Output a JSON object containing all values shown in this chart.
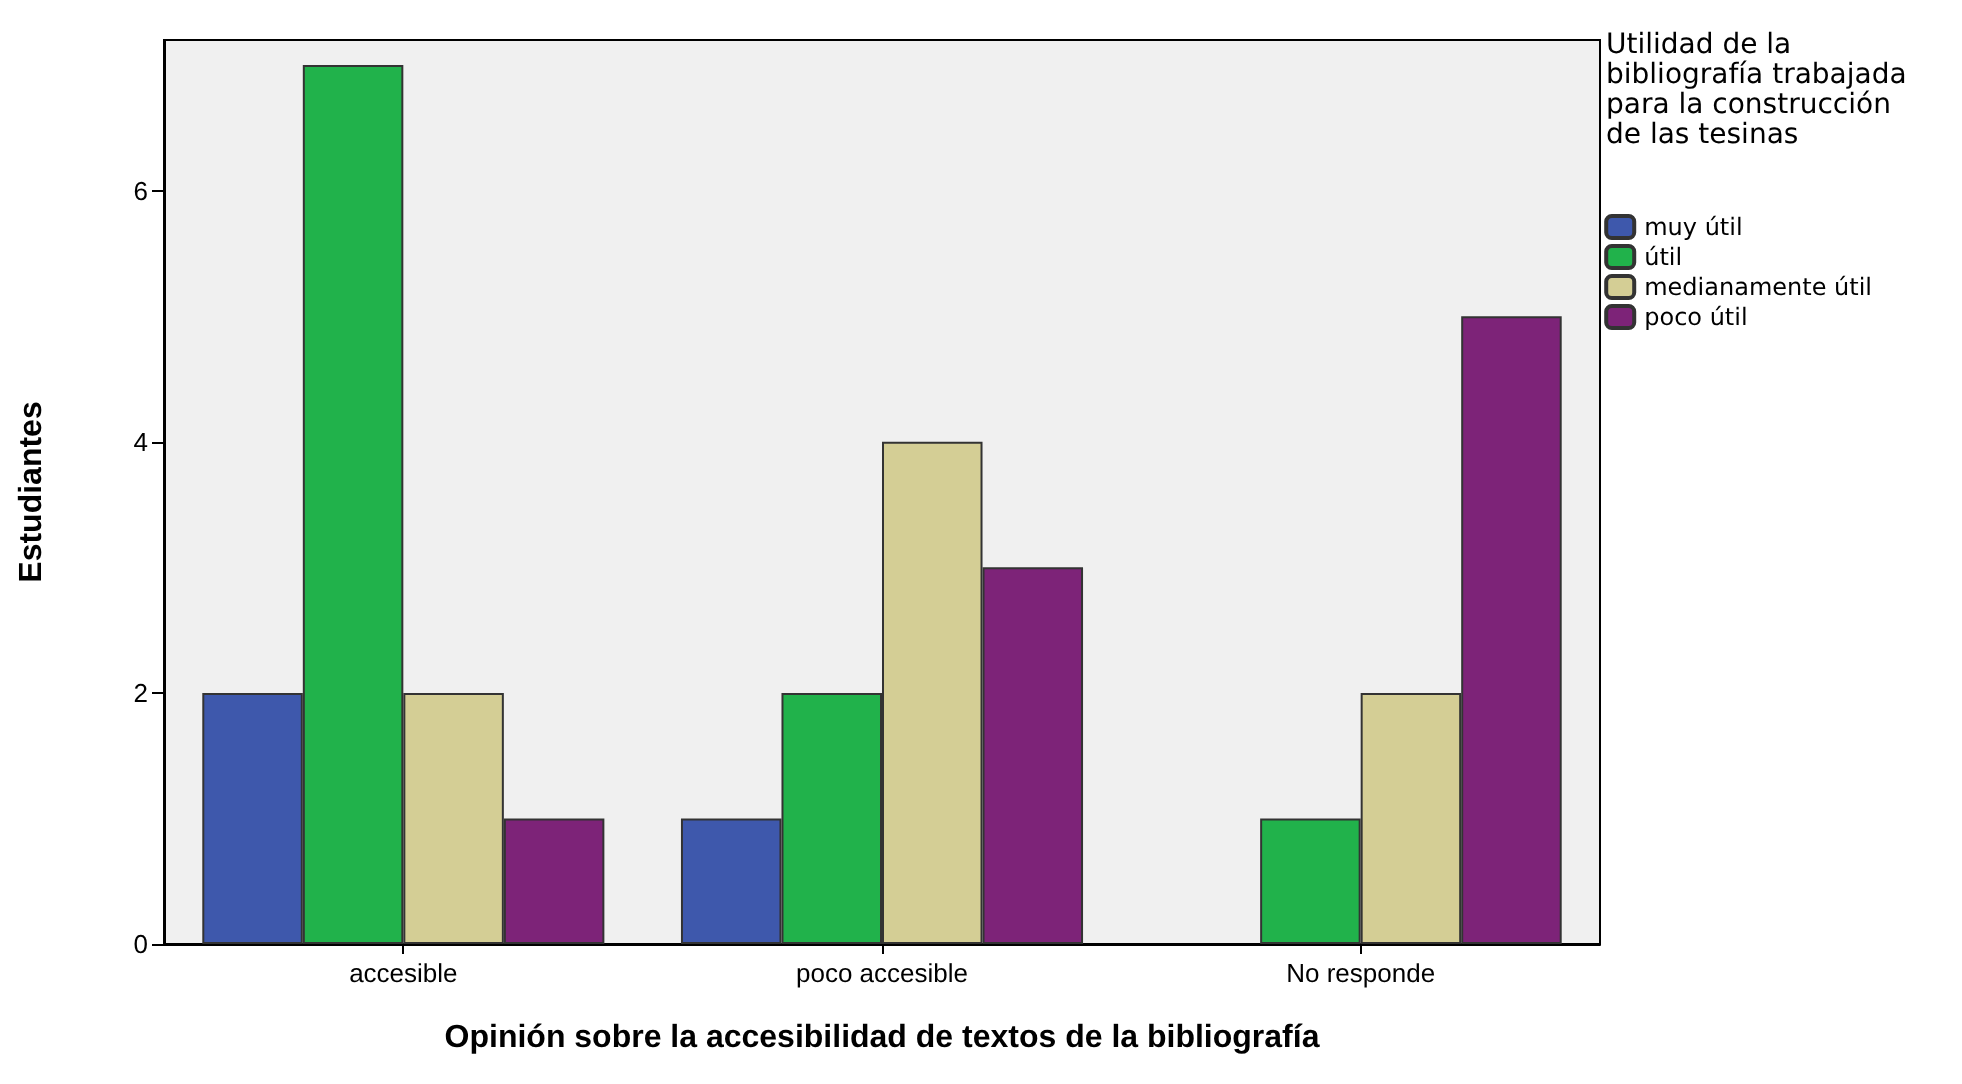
{
  "chart_data": {
    "type": "bar",
    "xlabel": "Opinión sobre la accesibilidad de textos de la bibliografía",
    "ylabel": "Estudiantes",
    "legend_title": "Utilidad de la bibliografía trabajada para la construcción de las tesinas",
    "categories": [
      "accesible",
      "poco accesible",
      "No responde"
    ],
    "series": [
      {
        "name": "muy útil",
        "color": "#3e58ac",
        "values": [
          2,
          1,
          null
        ]
      },
      {
        "name": "útil",
        "color": "#21b24b",
        "values": [
          7,
          2,
          1
        ]
      },
      {
        "name": "medianamente útil",
        "color": "#d4ce95",
        "values": [
          2,
          4,
          2
        ]
      },
      {
        "name": "poco útil",
        "color": "#7d2378",
        "values": [
          1,
          3,
          5
        ]
      }
    ],
    "ylim": [
      0,
      7.2
    ],
    "yticks": [
      0,
      2,
      4,
      6
    ],
    "grid": false,
    "legend": "top right"
  }
}
